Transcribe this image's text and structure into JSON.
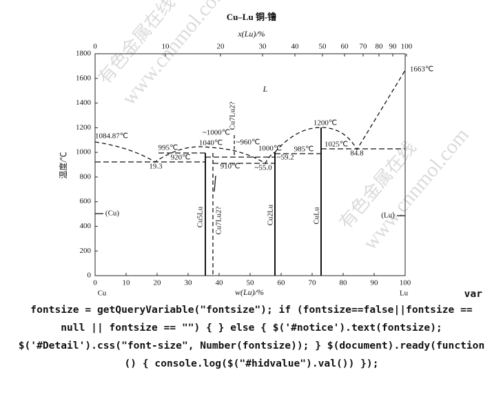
{
  "figure": {
    "title": "Cu–Lu  铜-镥",
    "top_axis": {
      "label": "x(Lu)/%",
      "ticks": [
        "0",
        "10",
        "20",
        "30",
        "40",
        "50",
        "60",
        "70",
        "80",
        "90",
        "100"
      ]
    },
    "left_axis": {
      "label": "温度/℃",
      "ticks": [
        "0",
        "200",
        "400",
        "600",
        "800",
        "1000",
        "1200",
        "1400",
        "1600",
        "1800"
      ]
    },
    "bottom_axis": {
      "label": "w(Lu)/%",
      "ticks": [
        "0",
        "10",
        "20",
        "30",
        "40",
        "50",
        "60",
        "70",
        "80",
        "90",
        "100"
      ]
    },
    "corners": [
      "Cu",
      "Lu"
    ],
    "annotations": [
      "1084.87℃",
      "995℃",
      "920℃",
      "19.3",
      "1040℃",
      "~1000℃",
      "~960℃",
      "910℃",
      "~55.0",
      "1000℃",
      "~59.2",
      "985℃",
      "1200℃",
      "1025℃",
      "84.8",
      "1663℃",
      "L",
      "(Cu)",
      "(Lu)"
    ],
    "phase_labels": [
      "Cu5Lu",
      "Cu7Lu2?",
      "Cu7Lu2?",
      "Cu2Lu",
      "CuLu"
    ],
    "watermarks": [
      "有色金属在线",
      "www.cnnmol.com"
    ]
  },
  "code_text": [
    "var",
    "fontsize = getQueryVariable(\"fontsize\"); if (fontsize==false||fontsize ==",
    "null || fontsize == \"\") { } else { $('#notice').text(fontsize);",
    "$('#Detail').css(\"font-size\", Number(fontsize)); } $(document).ready(function",
    "() { console.log($(\"#hidvalue\").val()) });"
  ]
}
